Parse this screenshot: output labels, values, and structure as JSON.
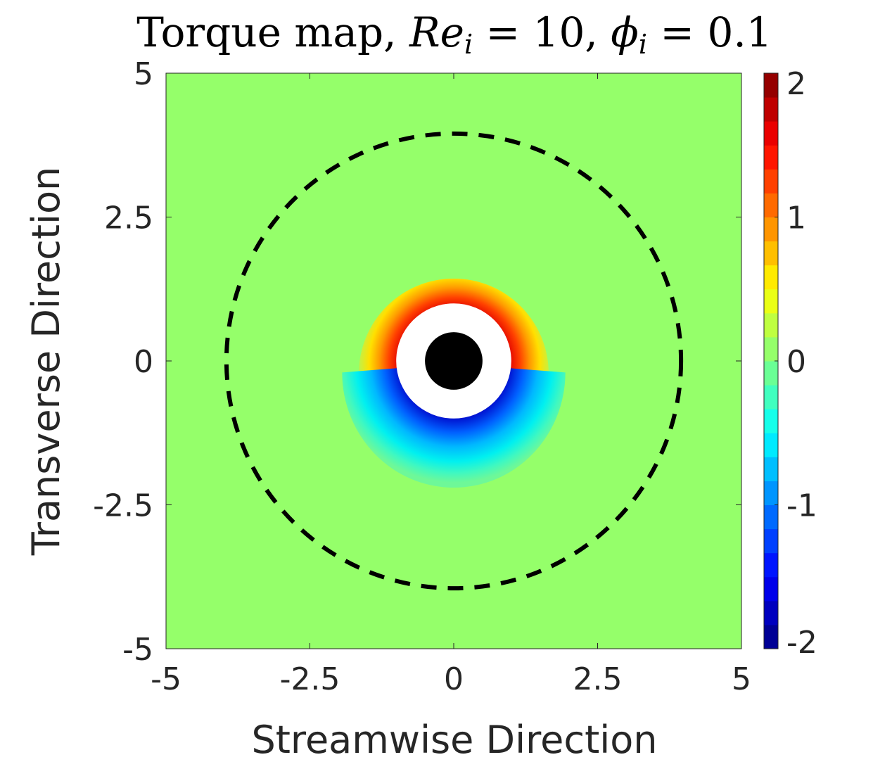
{
  "chart_data": {
    "type": "heatmap",
    "title": {
      "prefix": "Torque map, ",
      "re_symbol": "Re",
      "re_sub": "i",
      "re_value": " = 10, ",
      "phi_symbol": "ϕ",
      "phi_sub": "i",
      "phi_value": " = 0.1"
    },
    "xlabel": "Streamwise Direction",
    "ylabel": "Transverse Direction",
    "xlim": [
      -5,
      5
    ],
    "ylim": [
      -5,
      5
    ],
    "xticks": [
      {
        "value": -5,
        "label": "-5"
      },
      {
        "value": -2.5,
        "label": "-2.5"
      },
      {
        "value": 0,
        "label": "0"
      },
      {
        "value": 2.5,
        "label": "2.5"
      },
      {
        "value": 5,
        "label": "5"
      }
    ],
    "yticks": [
      {
        "value": -5,
        "label": "-5"
      },
      {
        "value": -2.5,
        "label": "-2.5"
      },
      {
        "value": 0,
        "label": "0"
      },
      {
        "value": 2.5,
        "label": "2.5"
      },
      {
        "value": 5,
        "label": "5"
      }
    ],
    "colorbar": {
      "clim": [
        -2,
        2
      ],
      "levels": 24,
      "colormap": "jet",
      "ticks": [
        {
          "value": 2,
          "label": "2"
        },
        {
          "value": 1,
          "label": "1"
        },
        {
          "value": 0,
          "label": "0"
        },
        {
          "value": -1,
          "label": "-1"
        },
        {
          "value": -2,
          "label": "-2"
        }
      ]
    },
    "background_value": 0.05,
    "particle": {
      "center": [
        0,
        0
      ],
      "radius": 0.5,
      "color": "#000000"
    },
    "excluded_zone": {
      "center": [
        0,
        0
      ],
      "radius": 1.0,
      "color": "#ffffff"
    },
    "neighborhood_circle": {
      "center": [
        0,
        0
      ],
      "radius": 3.95,
      "style": "dashed",
      "color": "#000000"
    },
    "torque_lobes": [
      {
        "sign": "positive",
        "side": "upper",
        "peak_value": 1.9,
        "outer_radius": 1.65
      },
      {
        "sign": "negative",
        "side": "lower",
        "peak_value": -1.9,
        "outer_radius": 2.0
      }
    ]
  }
}
